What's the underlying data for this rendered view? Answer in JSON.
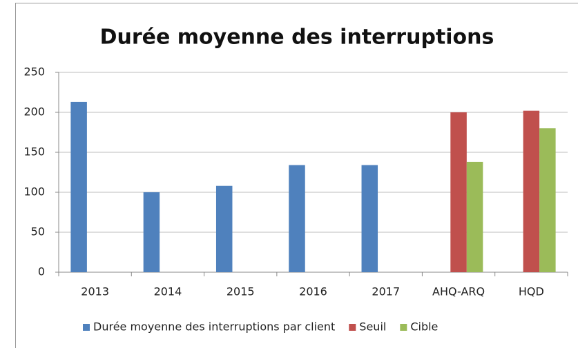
{
  "chart_data": {
    "type": "bar",
    "title": "Durée moyenne des interruptions",
    "categories": [
      "2013",
      "2014",
      "2015",
      "2016",
      "2017",
      "AHQ-ARQ",
      "HQD"
    ],
    "series": [
      {
        "name": "Durée moyenne des interruptions par client",
        "color": "#4f81bd",
        "values": [
          213,
          100,
          108,
          134,
          134,
          null,
          null
        ]
      },
      {
        "name": "Seuil",
        "color": "#c0504d",
        "values": [
          null,
          null,
          null,
          null,
          null,
          200,
          202
        ]
      },
      {
        "name": "Cible",
        "color": "#9bbb59",
        "values": [
          null,
          null,
          null,
          null,
          null,
          138,
          180
        ]
      }
    ],
    "ylim": [
      0,
      250
    ],
    "yticks": [
      0,
      50,
      100,
      150,
      200,
      250
    ],
    "grid": true,
    "legend": "bottom"
  }
}
